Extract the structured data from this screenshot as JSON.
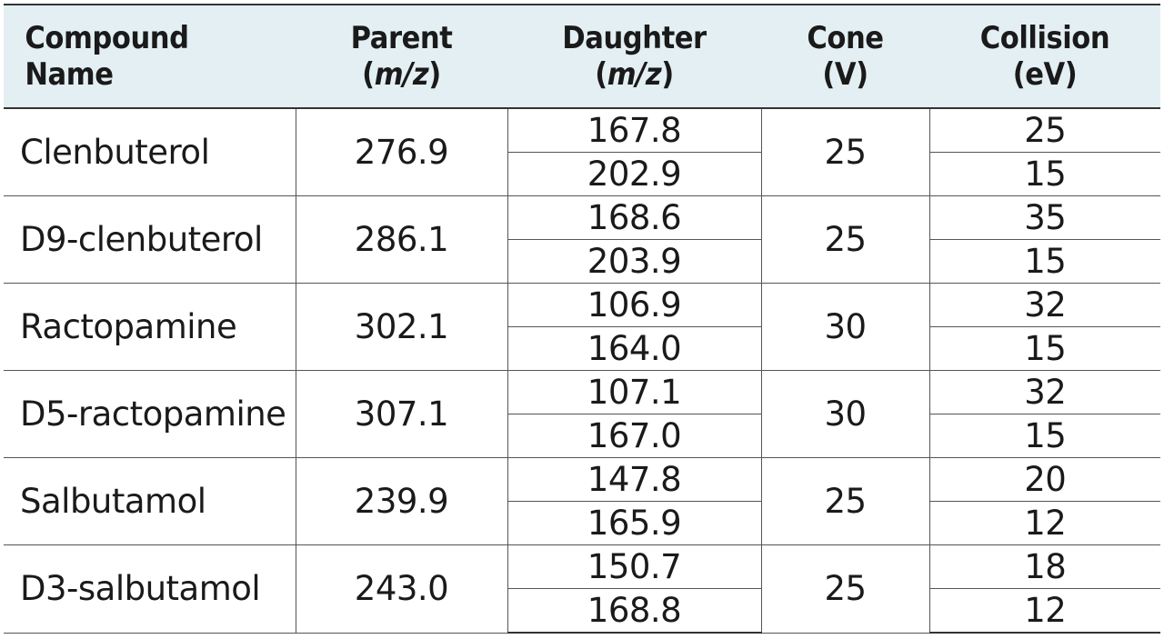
{
  "table": {
    "headers": [
      {
        "line1": "Compound Name",
        "line2": "",
        "line2_italic": "",
        "line2_open": "",
        "line2_close": ""
      },
      {
        "line1": "Parent",
        "line2_open": "(",
        "line2_italic": "m/z",
        "line2_close": ")"
      },
      {
        "line1": "Daughter",
        "line2_open": "(",
        "line2_italic": "m/z",
        "line2_close": ")"
      },
      {
        "line1": "Cone",
        "line2_open": "(V)",
        "line2_italic": "",
        "line2_close": ""
      },
      {
        "line1": "Collision",
        "line2_open": "(eV)",
        "line2_italic": "",
        "line2_close": ""
      }
    ],
    "rows": [
      {
        "compound": "Clenbuterol",
        "parent": "276.9",
        "daughter": [
          "167.8",
          "202.9"
        ],
        "cone": "25",
        "collision": [
          "25",
          "15"
        ]
      },
      {
        "compound": "D9-clenbuterol",
        "parent": "286.1",
        "daughter": [
          "168.6",
          "203.9"
        ],
        "cone": "25",
        "collision": [
          "35",
          "15"
        ]
      },
      {
        "compound": "Ractopamine",
        "parent": "302.1",
        "daughter": [
          "106.9",
          "164.0"
        ],
        "cone": "30",
        "collision": [
          "32",
          "15"
        ]
      },
      {
        "compound": "D5-ractopamine",
        "parent": "307.1",
        "daughter": [
          "107.1",
          "167.0"
        ],
        "cone": "30",
        "collision": [
          "32",
          "15"
        ]
      },
      {
        "compound": "Salbutamol",
        "parent": "239.9",
        "daughter": [
          "147.8",
          "165.9"
        ],
        "cone": "25",
        "collision": [
          "20",
          "12"
        ]
      },
      {
        "compound": "D3-salbutamol",
        "parent": "243.0",
        "daughter": [
          "150.7",
          "168.8"
        ],
        "cone": "25",
        "collision": [
          "18",
          "12"
        ]
      }
    ]
  }
}
